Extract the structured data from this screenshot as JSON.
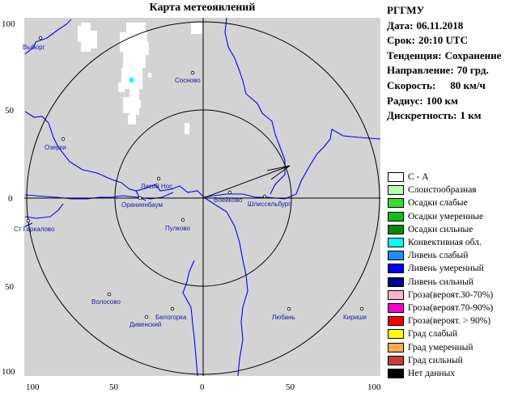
{
  "map": {
    "title": "Карта метеоявлений",
    "axis_labels": {
      "left": [
        "100",
        "50",
        "0",
        "50",
        "100"
      ],
      "bottom": [
        "100",
        "50",
        "0",
        "50",
        "100"
      ]
    },
    "range_rings_km": [
      50,
      100
    ],
    "cities": [
      {
        "name": "Выборг",
        "icon": "city-dot"
      },
      {
        "name": "Сосново",
        "icon": "city-dot"
      },
      {
        "name": "Озерки",
        "icon": "city-dot"
      },
      {
        "name": "Лисий Нос",
        "icon": "city-dot"
      },
      {
        "name": "Ораниенбаум",
        "icon": "city-dot"
      },
      {
        "name": "Воейково",
        "icon": "city-dot"
      },
      {
        "name": "Шлиссельбург",
        "icon": "city-dot"
      },
      {
        "name": "Пулково",
        "icon": "city-dot"
      },
      {
        "name": "Ст Гаркалово",
        "icon": "city-dot"
      },
      {
        "name": "Волосово",
        "icon": "city-dot"
      },
      {
        "name": "Белогорка",
        "icon": "city-dot"
      },
      {
        "name": "Дивенский",
        "icon": "city-dot"
      },
      {
        "name": "Любань",
        "icon": "city-dot"
      },
      {
        "name": "Кириши",
        "icon": "city-dot"
      }
    ],
    "colors": {
      "background": "#d3d3d3",
      "water": "#0000ff",
      "stratiform": "#ffffff",
      "convective": "#00ffff"
    }
  },
  "info": {
    "org": "РГГМУ",
    "date_label": "Дата:",
    "date_value": "06.11.2018",
    "time_label": "Срок:",
    "time_value": "20:10 UTC",
    "trend_label": "Тенденция:",
    "trend_value": "Сохранение",
    "direction_label": "Направление:",
    "direction_value": "70 грд.",
    "speed_label": "Скорость:",
    "speed_value": "80 км/ч",
    "radius_label": "Радиус:",
    "radius_value": "100 км",
    "discreteness_label": "Дискретность:",
    "discreteness_value": "1 км"
  },
  "legend": [
    {
      "label": "С - А",
      "color": "#ffffff"
    },
    {
      "label": "Слоистообразная",
      "color": "#b4ffb4"
    },
    {
      "label": "Осадки слабые",
      "color": "#32dc32"
    },
    {
      "label": "Осадки умеренные",
      "color": "#14be14"
    },
    {
      "label": "Осадки сильные",
      "color": "#008c00"
    },
    {
      "label": "Конвективная обл.",
      "color": "#00ffff"
    },
    {
      "label": "Ливень слабый",
      "color": "#1e8cff"
    },
    {
      "label": "Ливень умеренный",
      "color": "#0000ff"
    },
    {
      "label": "Ливень сильный",
      "color": "#00008c"
    },
    {
      "label": "Гроза(вероят.30-70%)",
      "color": "#ffb4c8"
    },
    {
      "label": "Гроза(вероят.70-90%)",
      "color": "#ff00c8"
    },
    {
      "label": "Гроза(вероят. > 90%)",
      "color": "#ff0000"
    },
    {
      "label": "Град слабый",
      "color": "#ffff00"
    },
    {
      "label": "Град умеренный",
      "color": "#ffaa50"
    },
    {
      "label": "Град сильный",
      "color": "#c83c3c"
    },
    {
      "label": "Нет данных",
      "color": "#000000"
    }
  ]
}
